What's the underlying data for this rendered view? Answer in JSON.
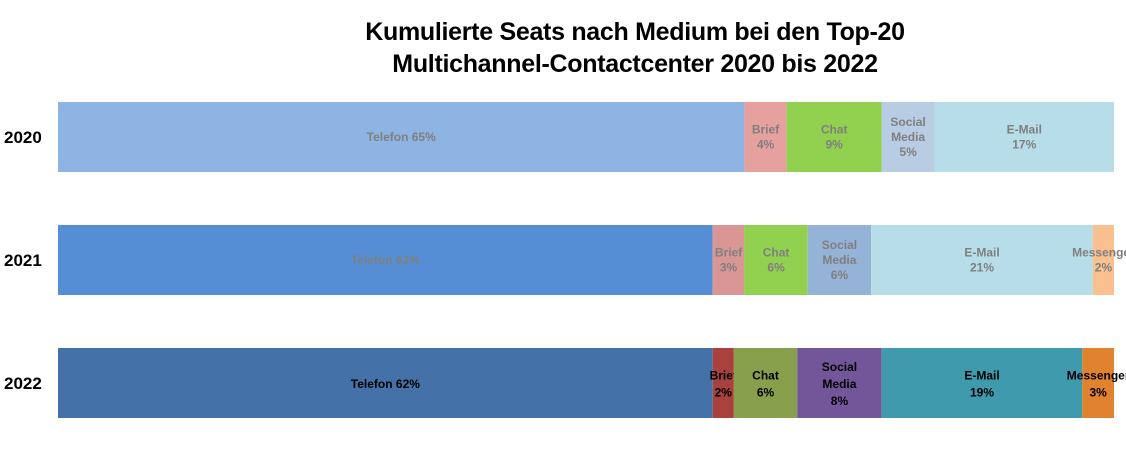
{
  "chart_data": {
    "type": "bar",
    "orientation": "horizontal",
    "stacked": true,
    "title_line1": "Kumulierte Seats nach Medium bei den Top-20",
    "title_line2": "Multichannel-Contactcenter 2020 bis 2022",
    "categories": [
      "2020",
      "2021",
      "2022"
    ],
    "series": [
      {
        "name": "Telefon",
        "label": "Telefon",
        "values": [
          65,
          62,
          62
        ]
      },
      {
        "name": "Brief",
        "label": "Brief",
        "values": [
          4,
          3,
          2
        ]
      },
      {
        "name": "Chat",
        "label": "Chat",
        "values": [
          9,
          6,
          6
        ]
      },
      {
        "name": "Social Media",
        "label": "Social Media",
        "values": [
          5,
          6,
          8
        ]
      },
      {
        "name": "E-Mail",
        "label": "E-Mail",
        "values": [
          17,
          21,
          19
        ]
      },
      {
        "name": "Messenger",
        "label": "Messenger",
        "values": [
          0,
          2,
          3
        ]
      }
    ],
    "colors": [
      [
        "#8eb4e3",
        "#e6a09e",
        "#92d050",
        "#b8cce4",
        "#b7dee8",
        "#fcd5b4"
      ],
      [
        "#558ed5",
        "#d99694",
        "#92d050",
        "#95b3d7",
        "#b7dee8",
        "#fac090"
      ],
      [
        "#4472a8",
        "#a9413e",
        "#88a04b",
        "#73569a",
        "#3f9aad",
        "#e1822f"
      ]
    ],
    "label_colors": [
      "#7f7f7f",
      "#000000"
    ],
    "unit": "%",
    "xlim": [
      0,
      100
    ],
    "grid": false,
    "legend": "none"
  }
}
